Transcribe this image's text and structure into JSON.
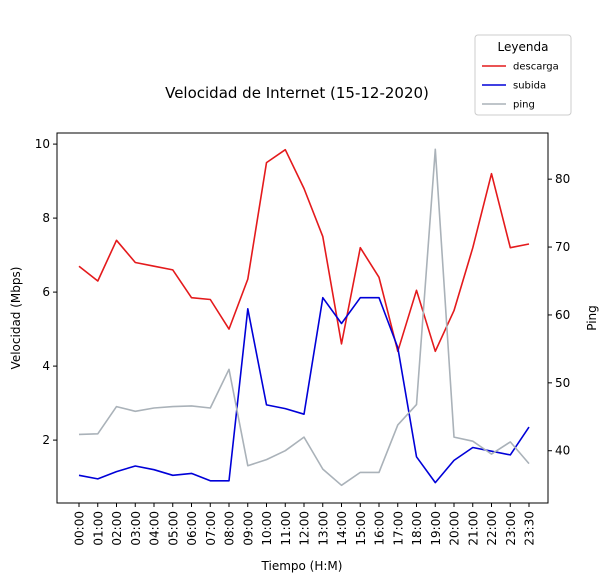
{
  "chart_data": {
    "type": "line",
    "title": "Velocidad de Internet (15-12-2020)",
    "xlabel": "Tiempo (H:M)",
    "ylabel_left": "Velocidad (Mbps)",
    "ylabel_right": "Ping",
    "legend_title": "Leyenda",
    "legend_position": "top-right",
    "grid": false,
    "categories": [
      "00:00",
      "01:00",
      "02:00",
      "03:00",
      "04:00",
      "05:00",
      "06:00",
      "07:00",
      "08:00",
      "09:00",
      "10:00",
      "11:00",
      "12:00",
      "13:00",
      "14:00",
      "15:00",
      "16:00",
      "17:00",
      "18:00",
      "19:00",
      "20:00",
      "21:00",
      "22:00",
      "23:00",
      "23:30"
    ],
    "ylim_left": [
      0.3,
      10.3
    ],
    "ylim_right": [
      32.3,
      86.8
    ],
    "yticks_left": [
      "2",
      "4",
      "6",
      "8",
      "10"
    ],
    "yticks_right": [
      "40",
      "50",
      "60",
      "70",
      "80"
    ],
    "series": [
      {
        "name": "descarga",
        "axis": "left",
        "color": "#e41a1c",
        "values": [
          6.7,
          6.3,
          7.4,
          6.8,
          6.7,
          6.6,
          5.85,
          5.8,
          5.0,
          6.35,
          9.5,
          9.85,
          8.8,
          7.5,
          4.6,
          7.2,
          6.4,
          4.4,
          6.05,
          4.4,
          5.5,
          7.2,
          9.2,
          7.2,
          7.3
        ]
      },
      {
        "name": "subida",
        "axis": "left",
        "color": "#0000d8",
        "values": [
          1.05,
          0.95,
          1.15,
          1.3,
          1.2,
          1.05,
          1.1,
          0.9,
          0.9,
          5.55,
          2.95,
          2.85,
          2.7,
          5.85,
          5.15,
          5.85,
          5.85,
          4.5,
          1.55,
          0.85,
          1.45,
          1.8,
          1.7,
          1.6,
          2.35
        ]
      },
      {
        "name": "ping",
        "axis": "right",
        "color": "#aab2b9",
        "values": [
          42.4,
          42.5,
          46.5,
          45.8,
          46.3,
          46.5,
          46.6,
          46.3,
          52.0,
          37.8,
          38.7,
          40.0,
          42.0,
          37.3,
          34.9,
          36.8,
          36.8,
          43.8,
          46.8,
          84.4,
          42.0,
          41.4,
          39.5,
          41.3,
          38.1
        ]
      }
    ]
  }
}
